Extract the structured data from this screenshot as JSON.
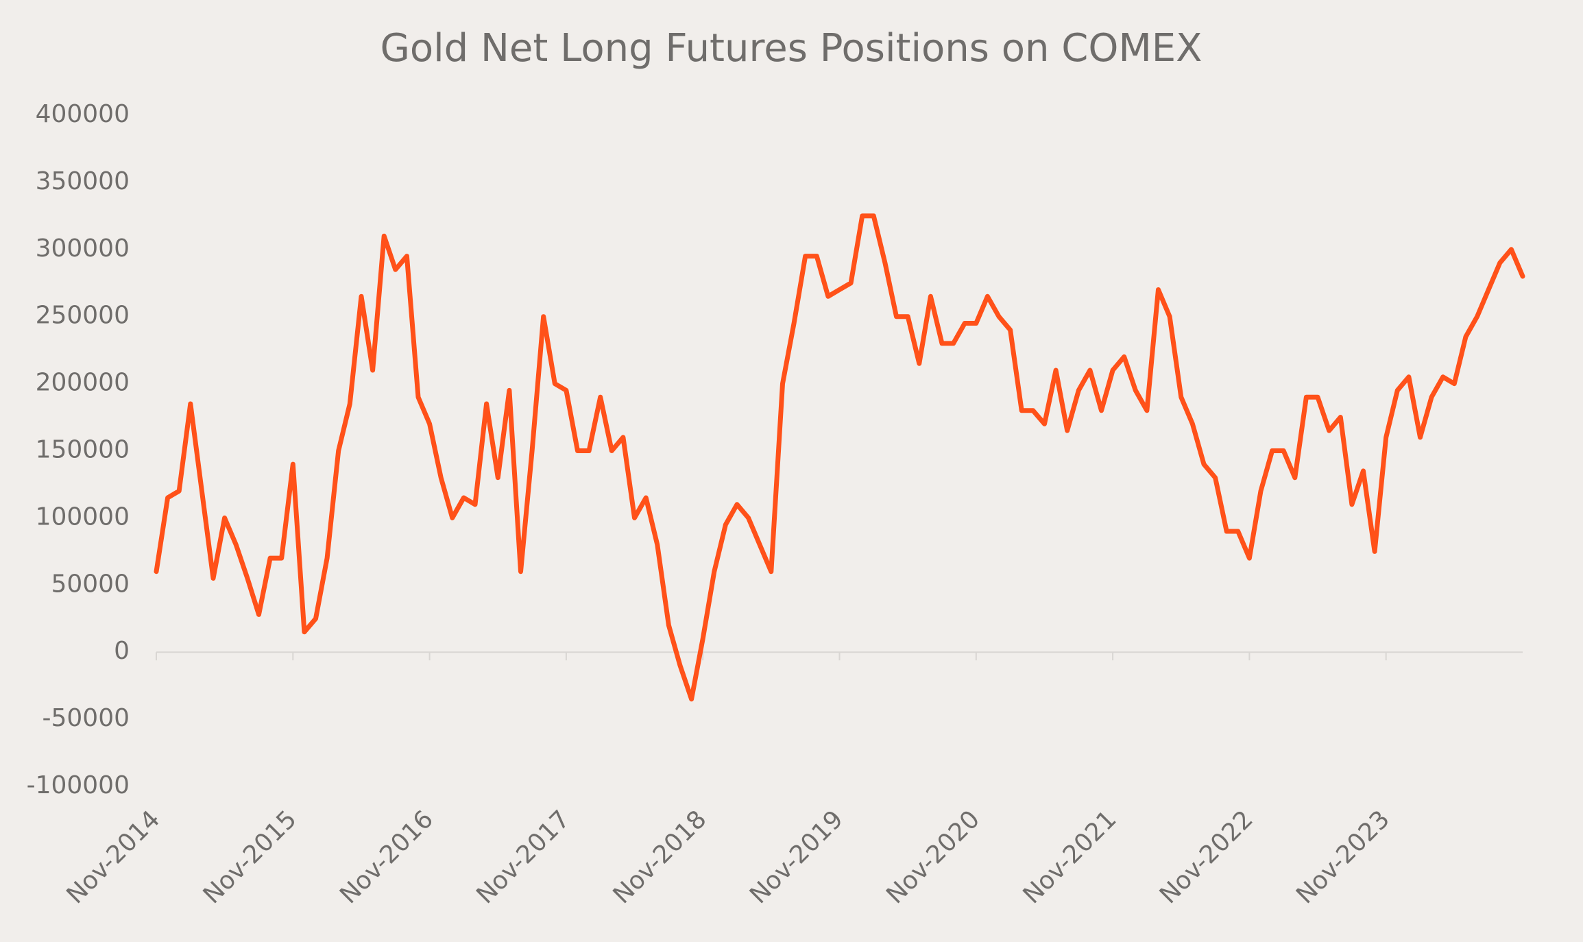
{
  "chart_data": {
    "type": "line",
    "title": "Gold Net Long Futures Positions on COMEX",
    "categories": [
      "Nov-2014",
      null,
      null,
      null,
      null,
      null,
      null,
      null,
      null,
      null,
      null,
      null,
      "Nov-2015",
      null,
      null,
      null,
      null,
      null,
      null,
      null,
      null,
      null,
      null,
      null,
      "Nov-2016",
      null,
      null,
      null,
      null,
      null,
      null,
      null,
      null,
      null,
      null,
      null,
      "Nov-2017",
      null,
      null,
      null,
      null,
      null,
      null,
      null,
      null,
      null,
      null,
      null,
      "Nov-2018",
      null,
      null,
      null,
      null,
      null,
      null,
      null,
      null,
      null,
      null,
      null,
      "Nov-2019",
      null,
      null,
      null,
      null,
      null,
      null,
      null,
      null,
      null,
      null,
      null,
      "Nov-2020",
      null,
      null,
      null,
      null,
      null,
      null,
      null,
      null,
      null,
      null,
      null,
      "Nov-2021",
      null,
      null,
      null,
      null,
      null,
      null,
      null,
      null,
      null,
      null,
      null,
      "Nov-2022",
      null,
      null,
      null,
      null,
      null,
      null,
      null,
      null,
      null,
      null,
      null,
      "Nov-2023",
      null,
      null,
      null,
      null,
      null,
      null,
      null,
      null,
      null,
      null,
      null,
      null
    ],
    "series": [
      {
        "name": "Gold Net Long",
        "color": "#ff5119",
        "values": [
          60000,
          115000,
          120000,
          185000,
          120000,
          55000,
          100000,
          80000,
          55000,
          28000,
          70000,
          70000,
          140000,
          15000,
          25000,
          70000,
          150000,
          185000,
          265000,
          210000,
          310000,
          285000,
          295000,
          190000,
          170000,
          130000,
          100000,
          115000,
          110000,
          185000,
          130000,
          195000,
          60000,
          150000,
          250000,
          200000,
          195000,
          150000,
          150000,
          190000,
          150000,
          160000,
          100000,
          115000,
          80000,
          20000,
          -10000,
          -35000,
          10000,
          60000,
          95000,
          110000,
          100000,
          80000,
          60000,
          200000,
          245000,
          295000,
          295000,
          265000,
          270000,
          275000,
          325000,
          325000,
          290000,
          250000,
          250000,
          215000,
          265000,
          230000,
          230000,
          245000,
          245000,
          265000,
          250000,
          240000,
          180000,
          180000,
          170000,
          210000,
          165000,
          195000,
          210000,
          180000,
          210000,
          220000,
          195000,
          180000,
          270000,
          250000,
          190000,
          170000,
          140000,
          130000,
          90000,
          90000,
          70000,
          120000,
          150000,
          150000,
          130000,
          190000,
          190000,
          165000,
          175000,
          110000,
          135000,
          75000,
          160000,
          195000,
          205000,
          160000,
          190000,
          205000,
          200000,
          235000,
          250000,
          270000,
          290000,
          300000,
          280000
        ]
      }
    ],
    "ylim": [
      -100000,
      400000
    ],
    "yticks": [
      -100000,
      -50000,
      0,
      50000,
      100000,
      150000,
      200000,
      250000,
      300000,
      350000,
      400000
    ]
  }
}
